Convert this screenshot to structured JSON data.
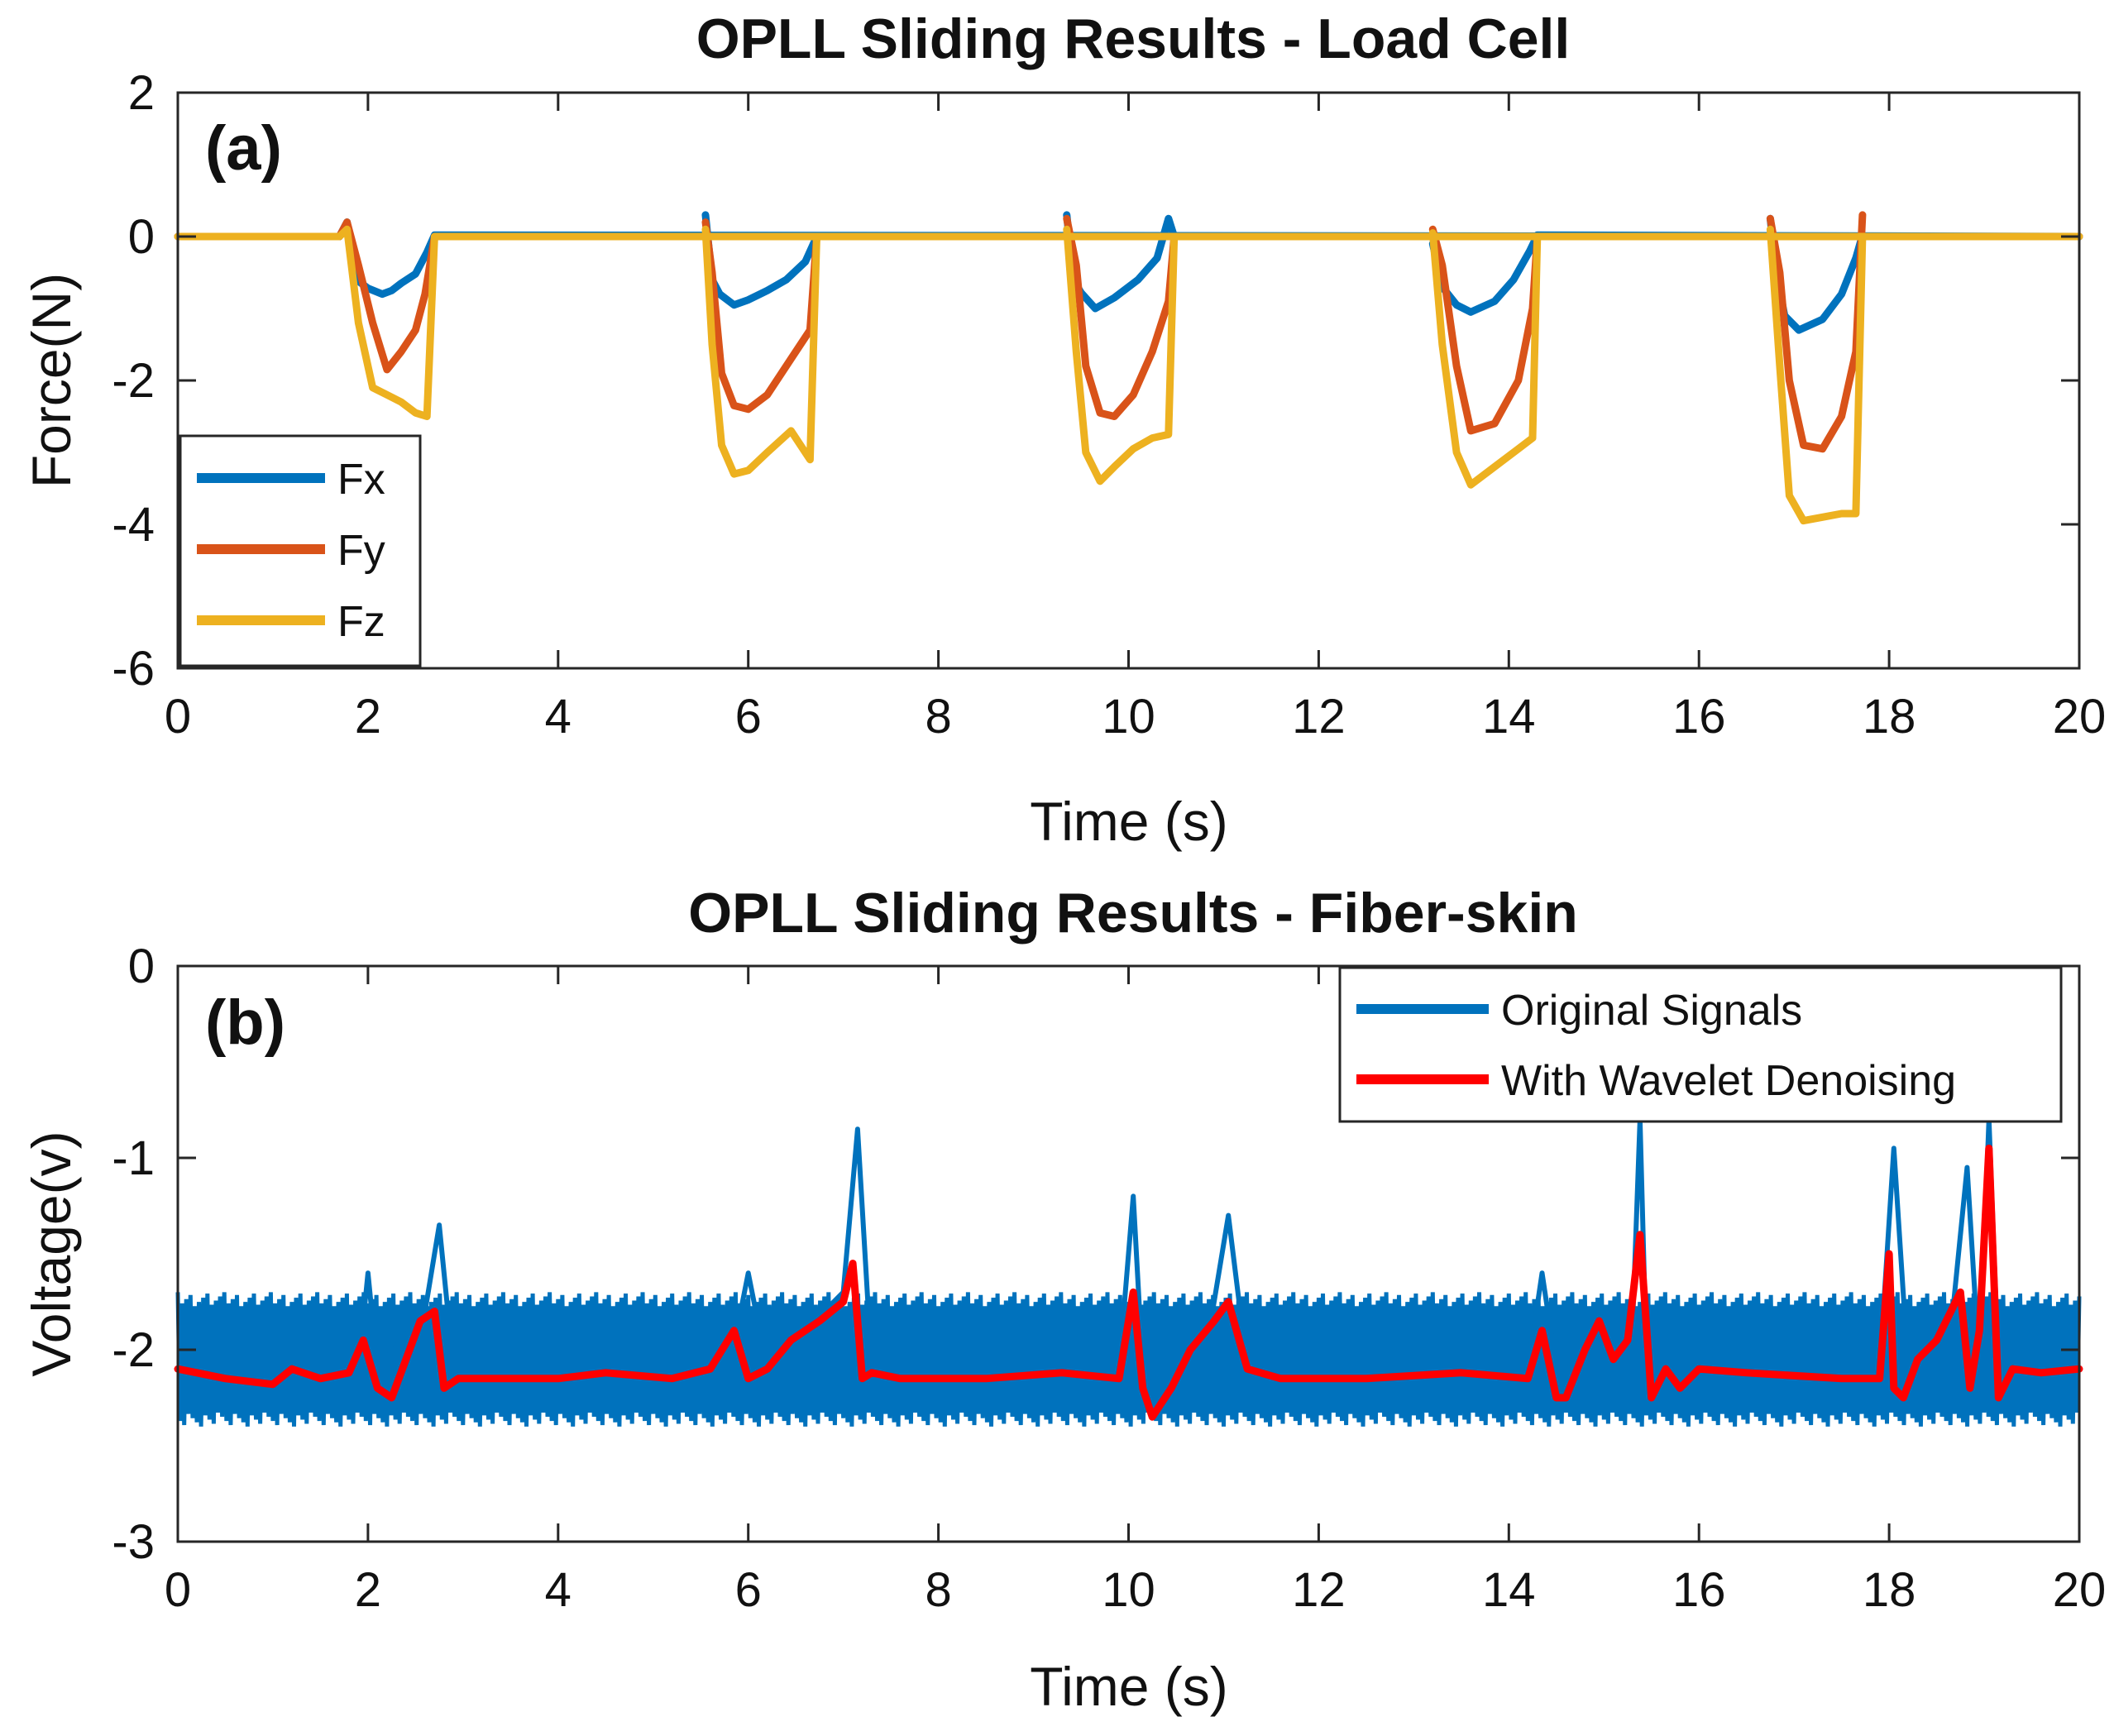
{
  "chart_data": [
    {
      "type": "line",
      "title": "OPLL Sliding Results - Load Cell",
      "panel_label": "(a)",
      "xlabel": "Time (s)",
      "ylabel": "Force(N)",
      "xlim": [
        0,
        20
      ],
      "ylim": [
        -6,
        2
      ],
      "xticks": [
        0,
        2,
        4,
        6,
        8,
        10,
        12,
        14,
        16,
        18,
        20
      ],
      "yticks": [
        -6,
        -4,
        -2,
        0,
        2
      ],
      "grid": false,
      "legend_position": "bottom-left",
      "series": [
        {
          "name": "Fx",
          "color": "#0072BD",
          "x": [
            0,
            1.7,
            1.78,
            1.88,
            2.0,
            2.15,
            2.25,
            2.35,
            2.5,
            2.62,
            2.7,
            20,
            5.55,
            5.62,
            5.7,
            5.85,
            6.0,
            6.2,
            6.4,
            6.6,
            6.72,
            20,
            9.35,
            9.42,
            9.5,
            9.65,
            9.85,
            10.1,
            10.3,
            10.42,
            10.48,
            20,
            13.2,
            13.3,
            13.45,
            13.6,
            13.85,
            14.05,
            14.22,
            14.3,
            20,
            16.75,
            16.82,
            16.9,
            17.05,
            17.3,
            17.5,
            17.65,
            17.72
          ],
          "y": [
            0,
            0,
            0.2,
            -0.6,
            -0.72,
            -0.8,
            -0.75,
            -0.65,
            -0.52,
            -0.22,
            0.02,
            0,
            0.3,
            -0.6,
            -0.8,
            -0.95,
            -0.88,
            -0.75,
            -0.6,
            -0.35,
            0,
            0,
            0.3,
            -0.6,
            -0.78,
            -1.0,
            -0.85,
            -0.6,
            -0.3,
            0.25,
            0,
            0,
            -0.1,
            -0.7,
            -0.95,
            -1.05,
            -0.9,
            -0.6,
            -0.2,
            0.02,
            0,
            0.25,
            -0.55,
            -1.1,
            -1.3,
            -1.15,
            -0.8,
            -0.3,
            0.02
          ]
        },
        {
          "name": "Fy",
          "color": "#D95319",
          "x": [
            0,
            1.7,
            1.78,
            1.9,
            2.05,
            2.2,
            2.35,
            2.5,
            2.6,
            2.7,
            20,
            5.55,
            5.62,
            5.72,
            5.85,
            6.0,
            6.2,
            6.45,
            6.65,
            6.72,
            20,
            9.35,
            9.45,
            9.55,
            9.7,
            9.85,
            10.05,
            10.25,
            10.42,
            10.48,
            20,
            13.2,
            13.3,
            13.45,
            13.6,
            13.85,
            14.1,
            14.25,
            14.3,
            20,
            16.75,
            16.85,
            16.95,
            17.1,
            17.3,
            17.5,
            17.65,
            17.72
          ],
          "y": [
            0,
            0,
            0.2,
            -0.4,
            -1.2,
            -1.85,
            -1.6,
            -1.3,
            -0.8,
            0,
            0,
            0.2,
            -0.5,
            -1.9,
            -2.35,
            -2.4,
            -2.2,
            -1.7,
            -1.3,
            0,
            0,
            0.25,
            -0.4,
            -1.8,
            -2.45,
            -2.5,
            -2.2,
            -1.6,
            -0.9,
            0,
            0,
            0.1,
            -0.4,
            -1.8,
            -2.7,
            -2.6,
            -2.0,
            -1.0,
            0,
            0,
            0.25,
            -0.5,
            -2.0,
            -2.9,
            -2.95,
            -2.5,
            -1.6,
            0.3
          ]
        },
        {
          "name": "Fz",
          "color": "#EDB120",
          "x": [
            0,
            1.7,
            1.78,
            1.9,
            2.05,
            2.2,
            2.35,
            2.5,
            2.62,
            2.7,
            20,
            5.55,
            5.62,
            5.72,
            5.85,
            6.0,
            6.2,
            6.45,
            6.65,
            6.72,
            20,
            9.35,
            9.45,
            9.55,
            9.7,
            9.85,
            10.05,
            10.25,
            10.42,
            10.48,
            20,
            13.2,
            13.3,
            13.45,
            13.6,
            13.85,
            14.1,
            14.25,
            14.3,
            20,
            16.75,
            16.85,
            16.95,
            17.1,
            17.3,
            17.5,
            17.65,
            17.72
          ],
          "y": [
            0,
            0,
            0.1,
            -1.2,
            -2.1,
            -2.2,
            -2.3,
            -2.45,
            -2.5,
            0,
            0,
            0.1,
            -1.5,
            -2.9,
            -3.3,
            -3.25,
            -3.0,
            -2.7,
            -3.1,
            0,
            0,
            0.1,
            -1.6,
            -3.0,
            -3.4,
            -3.2,
            -2.95,
            -2.8,
            -2.75,
            0,
            0,
            0.05,
            -1.5,
            -3.0,
            -3.45,
            -3.2,
            -2.95,
            -2.8,
            0,
            0,
            0.1,
            -1.8,
            -3.6,
            -3.95,
            -3.9,
            -3.85,
            -3.85,
            0
          ]
        }
      ]
    },
    {
      "type": "line",
      "title": "OPLL Sliding Results - Fiber-skin",
      "panel_label": "(b)",
      "xlabel": "Time (s)",
      "ylabel": "Voltage(v)",
      "xlim": [
        0,
        20
      ],
      "ylim": [
        -3,
        0
      ],
      "xticks": [
        0,
        2,
        4,
        6,
        8,
        10,
        12,
        14,
        16,
        18,
        20
      ],
      "yticks": [
        -3,
        -2,
        -1,
        0
      ],
      "grid": false,
      "legend_position": "top-right",
      "noise_band": [
        -2.4,
        -1.7
      ],
      "series": [
        {
          "name": "Original Signals",
          "color": "#0072BD",
          "x": [
            0,
            1.9,
            2.0,
            2.1,
            2.6,
            2.75,
            2.9,
            5.8,
            6.0,
            6.2,
            7.0,
            7.15,
            7.3,
            9.9,
            10.05,
            10.15,
            10.35,
            10.85,
            11.05,
            11.25,
            14.2,
            14.35,
            14.5,
            15.3,
            15.38,
            15.45,
            17.9,
            18.05,
            18.2,
            18.65,
            18.82,
            18.95,
            19.05,
            19.15,
            20
          ],
          "y": [
            -2.1,
            -2.1,
            -1.6,
            -2.1,
            -1.8,
            -1.35,
            -2.1,
            -2.1,
            -1.6,
            -2.1,
            -1.7,
            -0.85,
            -2.1,
            -2.1,
            -1.2,
            -2.1,
            -2.3,
            -1.9,
            -1.3,
            -2.1,
            -2.1,
            -1.6,
            -2.1,
            -1.9,
            -0.8,
            -2.1,
            -2.1,
            -0.95,
            -2.1,
            -1.9,
            -1.05,
            -2.1,
            -0.8,
            -2.1,
            -2.1
          ]
        },
        {
          "name": "With Wavelet Denoising",
          "color": "#FF0000",
          "x": [
            0,
            0.5,
            1.0,
            1.2,
            1.5,
            1.8,
            1.95,
            2.1,
            2.25,
            2.4,
            2.55,
            2.7,
            2.8,
            2.95,
            3.2,
            4.0,
            4.5,
            5.2,
            5.6,
            5.85,
            6.0,
            6.2,
            6.45,
            6.75,
            7.0,
            7.1,
            7.2,
            7.3,
            7.6,
            8.5,
            9.3,
            9.9,
            10.05,
            10.15,
            10.25,
            10.45,
            10.65,
            10.9,
            11.05,
            11.25,
            11.6,
            12.5,
            13.5,
            14.2,
            14.35,
            14.5,
            14.6,
            14.8,
            14.95,
            15.1,
            15.25,
            15.38,
            15.5,
            15.65,
            15.8,
            16.0,
            16.5,
            17.5,
            17.9,
            18.0,
            18.05,
            18.15,
            18.3,
            18.5,
            18.75,
            18.85,
            18.95,
            19.05,
            19.15,
            19.3,
            19.6,
            20
          ],
          "y": [
            -2.1,
            -2.15,
            -2.18,
            -2.1,
            -2.15,
            -2.12,
            -1.95,
            -2.2,
            -2.25,
            -2.05,
            -1.85,
            -1.8,
            -2.2,
            -2.15,
            -2.15,
            -2.15,
            -2.12,
            -2.15,
            -2.1,
            -1.9,
            -2.15,
            -2.1,
            -1.95,
            -1.85,
            -1.75,
            -1.55,
            -2.15,
            -2.12,
            -2.15,
            -2.15,
            -2.12,
            -2.15,
            -1.7,
            -2.2,
            -2.35,
            -2.2,
            -2.0,
            -1.85,
            -1.75,
            -2.1,
            -2.15,
            -2.15,
            -2.12,
            -2.15,
            -1.9,
            -2.25,
            -2.25,
            -2.0,
            -1.85,
            -2.05,
            -1.95,
            -1.4,
            -2.25,
            -2.1,
            -2.2,
            -2.1,
            -2.12,
            -2.15,
            -2.15,
            -1.5,
            -2.2,
            -2.25,
            -2.05,
            -1.95,
            -1.7,
            -2.2,
            -1.9,
            -0.95,
            -2.25,
            -2.1,
            -2.12,
            -2.1
          ]
        }
      ]
    }
  ]
}
